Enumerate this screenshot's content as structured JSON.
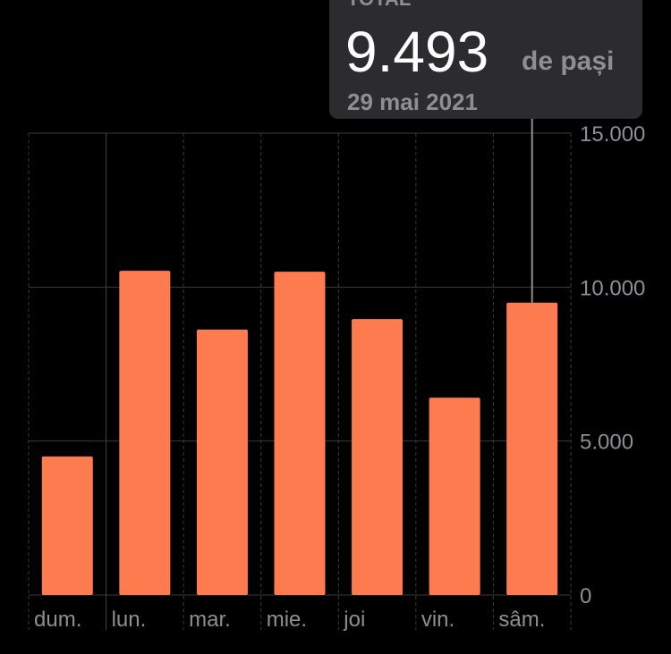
{
  "chart_data": {
    "type": "bar",
    "categories": [
      "dum.",
      "lun.",
      "mar.",
      "mie.",
      "joi",
      "vin.",
      "sâm."
    ],
    "values": [
      4500,
      10530,
      8620,
      10500,
      8960,
      6410,
      9493
    ],
    "value_labels": [
      null,
      null,
      null,
      null,
      null,
      null,
      "9.493"
    ],
    "color": "#fe7b4f",
    "ylim": [
      0,
      15000
    ],
    "yticks": [
      0,
      {
        "value": 5000,
        "label": "5.000"
      },
      {
        "value": 10000,
        "label": "10.000"
      },
      {
        "value": 15000,
        "label": "15.000"
      }
    ],
    "grid": true,
    "tooltip": {
      "header": "TOTAL",
      "unit": "de pași",
      "date": "29 mai 2021",
      "index": 6
    }
  }
}
